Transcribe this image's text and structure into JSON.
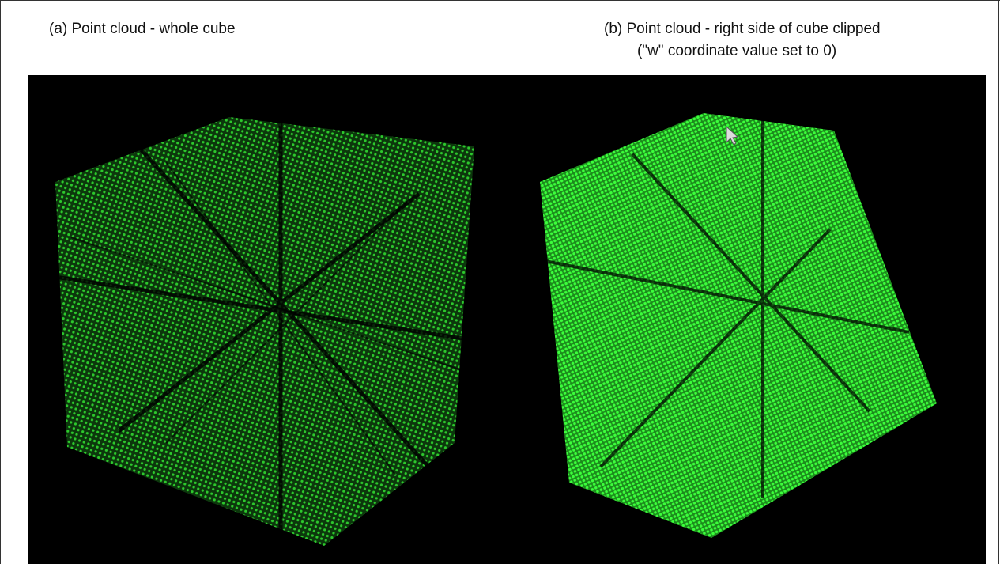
{
  "panels": [
    {
      "caption": [
        "(a) Point cloud - whole cube"
      ]
    },
    {
      "caption": [
        "(b) Point cloud - right side of cube clipped",
        "(\"w\" coordinate value set to 0)"
      ]
    }
  ]
}
